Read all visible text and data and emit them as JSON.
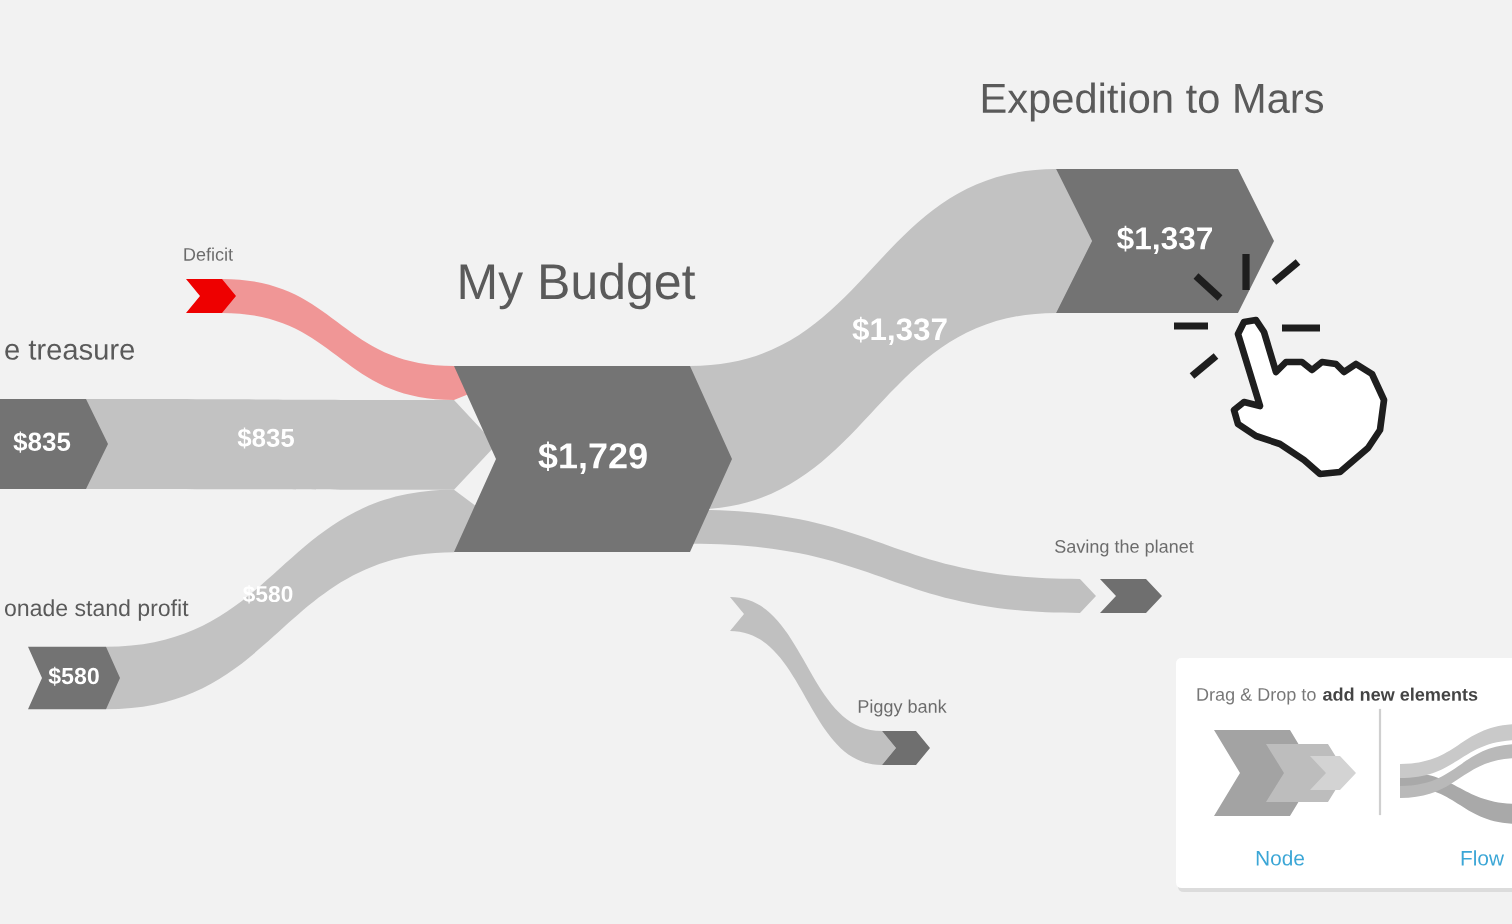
{
  "chart_data": {
    "type": "other",
    "categories": [
      "e treasure",
      "onade stand profit",
      "Deficit",
      "My Budget",
      "Expedition to Mars",
      "Saving the planet",
      "Piggy bank"
    ],
    "values": [
      835,
      580,
      null,
      1729,
      1337,
      null,
      null
    ],
    "value_labels": [
      "$835",
      "$580",
      null,
      "$1,729",
      "$1,337",
      null,
      null
    ],
    "colors": [
      "#737373",
      "#737373",
      "#ee0000",
      "#747474",
      "#737373",
      "#6f6f6f",
      "#6f6f6f"
    ],
    "annotations": [
      "$835",
      "$580",
      "$1,337",
      "Drag & Drop to",
      "add new elements",
      "Node",
      "Flow"
    ]
  }
}
